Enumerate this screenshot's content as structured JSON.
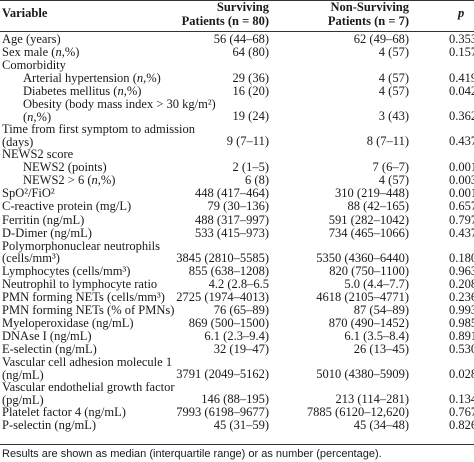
{
  "header": {
    "variable": "Variable",
    "surviving_line1": "Surviving",
    "surviving_line2": "Patients (n = 80)",
    "nonsurviving_line1": "Non-Surviving",
    "nonsurviving_line2": "Patients (n = 7)",
    "p": "p"
  },
  "rows": [
    {
      "label": "Age (years)",
      "surviving": "56 (44–68)",
      "nonsurviving": "62 (49–68)",
      "p": "0.353"
    },
    {
      "label": "Sex male (n,%)",
      "surviving": "64 (80)",
      "nonsurviving": "4 (57)",
      "p": "0.157"
    },
    {
      "label": "Comorbidity",
      "surviving": "",
      "nonsurviving": "",
      "p": ""
    },
    {
      "label": "Arterial hypertension (n,%)",
      "surviving": "29 (36)",
      "nonsurviving": "4 (57)",
      "p": "0.419"
    },
    {
      "label": "Diabetes mellitus (n,%)",
      "surviving": "16 (20)",
      "nonsurviving": "4 (57)",
      "p": "0.042"
    },
    {
      "label": "Obesity (body mass index > 30 kg/m²) (n,%)",
      "surviving": "19 (24)",
      "nonsurviving": "3 (43)",
      "p": "0.362"
    },
    {
      "label": "Time from first symptom to admission (days)",
      "surviving": "9 (7–11)",
      "nonsurviving": "8 (7–11)",
      "p": "0.437"
    },
    {
      "label": "NEWS2 score",
      "surviving": "",
      "nonsurviving": "",
      "p": ""
    },
    {
      "label": "NEWS2 (points)",
      "surviving": "2 (1–5)",
      "nonsurviving": "7 (6–7)",
      "p": "0.001"
    },
    {
      "label": "NEWS2 > 6 (n,%)",
      "surviving": "6 (8)",
      "nonsurviving": "4 (57)",
      "p": "0.003"
    },
    {
      "label": "SpO²/FiO²",
      "surviving": "448 (417–464)",
      "nonsurviving": "310 (219–448)",
      "p": "0.001"
    },
    {
      "label": "C-reactive protein (mg/L)",
      "surviving": "79 (30–136)",
      "nonsurviving": "88 (42–165)",
      "p": "0.657"
    },
    {
      "label": "Ferritin (ng/mL)",
      "surviving": "488 (317–997)",
      "nonsurviving": "591 (282–1042)",
      "p": "0.797"
    },
    {
      "label": "D-Dimer (ng/mL)",
      "surviving": "533 (415–973)",
      "nonsurviving": "734 (465–1066)",
      "p": "0.437"
    },
    {
      "label": "Polymorphonuclear neutrophils (cells/mm³)",
      "surviving": "3845 (2810–5585)",
      "nonsurviving": "5350 (4360–6440)",
      "p": "0.180"
    },
    {
      "label": "Lymphocytes (cells/mm³)",
      "surviving": "855 (638–1208)",
      "nonsurviving": "820 (750–1100)",
      "p": "0.963"
    },
    {
      "label": "Neutrophil to lymphocyte ratio",
      "surviving": "4.2 (2.8–6.5",
      "nonsurviving": "5.0 (4.4–7.7)",
      "p": "0.208"
    },
    {
      "label": "PMN forming NETs (cells/mm³)",
      "surviving": "2725 (1974–4013)",
      "nonsurviving": "4618 (2105–4771)",
      "p": "0.236"
    },
    {
      "label": "PMN forming NETs (% of PMNs)",
      "surviving": "76 (65–89)",
      "nonsurviving": "87 (54–89)",
      "p": "0.993"
    },
    {
      "label": "Myeloperoxidase (ng/mL)",
      "surviving": "869 (500–1500)",
      "nonsurviving": "870 (490–1452)",
      "p": "0.985"
    },
    {
      "label": "DNAse I (ng/mL)",
      "surviving": "6.1 (2.3–9.4)",
      "nonsurviving": "6.1 (3.5–8.4)",
      "p": "0.891"
    },
    {
      "label": "E-selectin (ng/mL)",
      "surviving": "32 (19–47)",
      "nonsurviving": "26 (13–45)",
      "p": "0.530"
    },
    {
      "label": "Vascular cell adhesion molecule 1 (ng/mL)",
      "surviving": "3791 (2049–5162)",
      "nonsurviving": "5010 (4380–5909)",
      "p": "0.028"
    },
    {
      "label": "Vascular endothelial growth factor (pg/mL)",
      "surviving": "146 (88–195)",
      "nonsurviving": "213 (114–281)",
      "p": "0.134"
    },
    {
      "label": "Platelet factor 4 (ng/mL)",
      "surviving": "7993 (6198–9677)",
      "nonsurviving": "7885 (6120–12,620)",
      "p": "0.767"
    },
    {
      "label": "P-selectin (ng/mL)",
      "surviving": "45 (31–59)",
      "nonsurviving": "45 (34–48)",
      "p": "0.826"
    }
  ],
  "footnote": "Results are shown as median (interquartile range) or as number (percentage)."
}
